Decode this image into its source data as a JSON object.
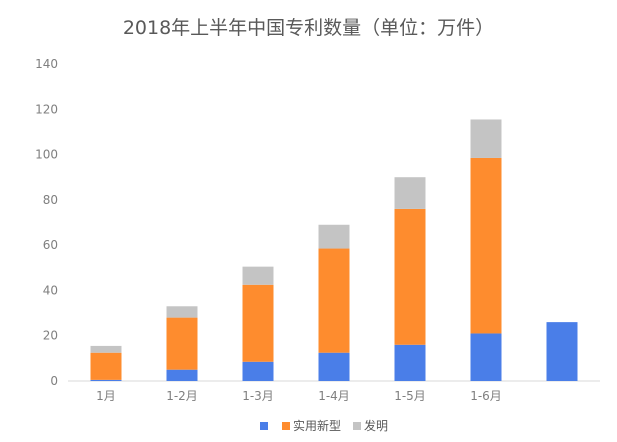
{
  "chart_data": {
    "type": "bar",
    "stacked": true,
    "title": "2018年上半年中国专利数量（单位：万件）",
    "categories": [
      "1月",
      "1-2月",
      "1-3月",
      "1-4月",
      "1-5月",
      "1-6月",
      ""
    ],
    "series": [
      {
        "name": "",
        "color": "#4a7ee8",
        "values": [
          0.5,
          5,
          8.5,
          12.5,
          16,
          21,
          26
        ]
      },
      {
        "name": "实用新型",
        "color": "#fe8c2e",
        "values": [
          12,
          23,
          34,
          46,
          60,
          77.5,
          0
        ]
      },
      {
        "name": "发明",
        "color": "#c4c4c4",
        "values": [
          3,
          5,
          8,
          10.5,
          14,
          17,
          0
        ]
      }
    ],
    "yticks": [
      0,
      20,
      40,
      60,
      80,
      100,
      120,
      140
    ],
    "ylim": [
      0,
      140
    ],
    "legend_position": "bottom"
  }
}
